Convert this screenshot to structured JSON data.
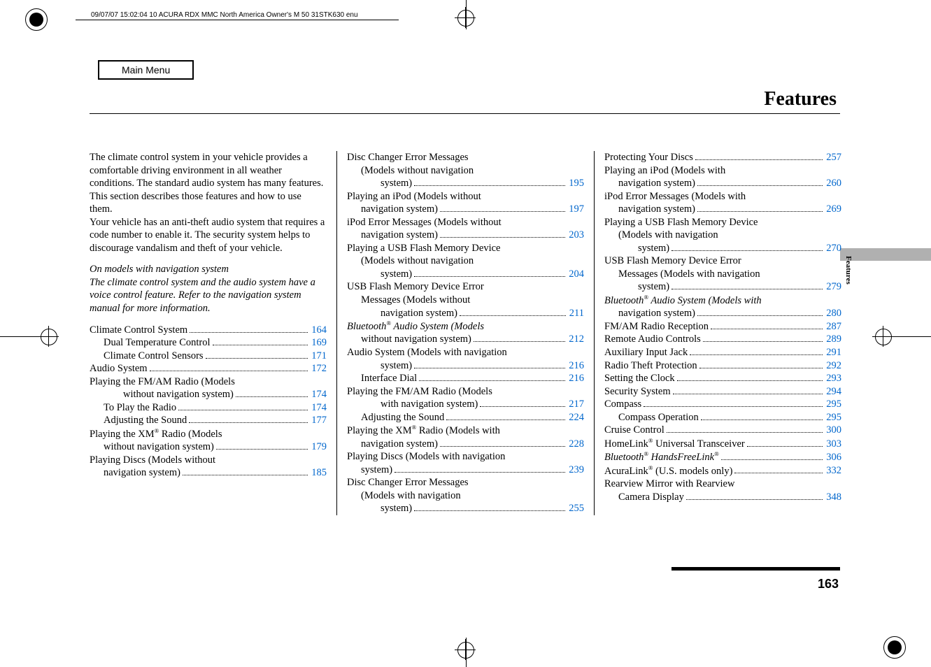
{
  "header": {
    "timestamp": "09/07/07 15:02:04    10 ACURA RDX MMC North America Owner's M 50 31STK630 enu"
  },
  "main_menu_label": "Main Menu",
  "title": "Features",
  "side_tab": "Features",
  "page_number": "163",
  "intro": "The climate control system in your vehicle provides a comfortable driving environment in all weather conditions. The standard audio system has many features. This section describes those features and how to use them.\nYour vehicle has an anti-theft audio system that requires a code number to enable it. The security system helps to discourage vandalism and theft of your vehicle.",
  "note_heading": "On models with navigation system",
  "note_body": "The climate control system and the audio system have a voice control feature. Refer to the navigation system manual for more information.",
  "col1": [
    {
      "label": "Climate Control System",
      "page": "164",
      "indent": 0
    },
    {
      "label": "Dual Temperature Control",
      "page": "169",
      "indent": 1
    },
    {
      "label": "Climate Control Sensors",
      "page": "171",
      "indent": 1
    },
    {
      "label": "Audio System",
      "page": "172",
      "indent": 0
    },
    {
      "label": "Playing the FM/AM Radio (Models",
      "cont": "without navigation system)",
      "page": "174",
      "indent": 0,
      "contIndent": 2
    },
    {
      "label": "To Play the Radio",
      "page": "174",
      "indent": 1
    },
    {
      "label": "Adjusting the Sound",
      "page": "177",
      "indent": 1
    },
    {
      "label": "Playing the XM® Radio (Models",
      "cont": "without navigation system)",
      "page": "179",
      "indent": 0,
      "contIndent": 1
    },
    {
      "label": "Playing Discs (Models without",
      "cont": "navigation system)",
      "page": "185",
      "indent": 0,
      "contIndent": 1
    }
  ],
  "col2": [
    {
      "label": "Disc Changer Error Messages",
      "cont": "(Models without navigation",
      "cont2": "system)",
      "page": "195",
      "indent": 0
    },
    {
      "label": "Playing an iPod (Models without",
      "cont": "navigation system)",
      "page": "197",
      "indent": 0
    },
    {
      "label": "iPod Error Messages (Models without",
      "cont": "navigation system)",
      "page": "203",
      "indent": 0
    },
    {
      "label": "Playing a USB Flash Memory Device",
      "cont": "(Models without navigation",
      "cont2": "system)",
      "page": "204",
      "indent": 0
    },
    {
      "label": "USB Flash Memory Device Error",
      "cont": "Messages (Models without",
      "cont2": "navigation system)",
      "page": "211",
      "indent": 0
    },
    {
      "label": "Bluetooth® Audio System (Models",
      "italic": true,
      "cont": "without navigation system)",
      "page": "212",
      "indent": 0
    },
    {
      "label": "Audio System (Models with navigation",
      "cont": "system)",
      "page": "216",
      "indent": 0,
      "contIndent": 2
    },
    {
      "label": "Interface Dial",
      "page": "216",
      "indent": 1
    },
    {
      "label": "Playing the FM/AM Radio (Models",
      "cont": "with navigation system)",
      "page": "217",
      "indent": 0,
      "contIndent": 2
    },
    {
      "label": "Adjusting the Sound",
      "page": "224",
      "indent": 1
    },
    {
      "label": "Playing the XM® Radio (Models with",
      "cont": "navigation system)",
      "page": "228",
      "indent": 0
    },
    {
      "label": "Playing Discs (Models with navigation",
      "cont": "system)",
      "page": "239",
      "indent": 0
    },
    {
      "label": "Disc Changer Error Messages",
      "cont": "(Models with navigation",
      "cont2": "system)",
      "page": "255",
      "indent": 0
    }
  ],
  "col3": [
    {
      "label": "Protecting Your Discs",
      "page": "257",
      "indent": 0
    },
    {
      "label": "Playing an iPod (Models with",
      "cont": "navigation system)",
      "page": "260",
      "indent": 0
    },
    {
      "label": "iPod Error Messages (Models with",
      "cont": "navigation system)",
      "page": "269",
      "indent": 0
    },
    {
      "label": "Playing a USB Flash Memory Device",
      "cont": "(Models with navigation",
      "cont2": "system)",
      "page": "270",
      "indent": 0
    },
    {
      "label": "USB Flash Memory Device Error",
      "cont": "Messages (Models with navigation",
      "cont2": "system)",
      "page": "279",
      "indent": 0
    },
    {
      "label": "Bluetooth® Audio System (Models with",
      "italic": true,
      "cont": "navigation system)",
      "page": "280",
      "indent": 0
    },
    {
      "label": "FM/AM Radio Reception",
      "page": "287",
      "indent": 0
    },
    {
      "label": "Remote Audio Controls",
      "page": "289",
      "indent": 0
    },
    {
      "label": "Auxiliary Input Jack",
      "page": "291",
      "indent": 0
    },
    {
      "label": "Radio Theft Protection",
      "page": "292",
      "indent": 0
    },
    {
      "label": "Setting the Clock",
      "page": "293",
      "indent": 0
    },
    {
      "label": "Security System",
      "page": "294",
      "indent": 0
    },
    {
      "label": "Compass",
      "page": "295",
      "indent": 0
    },
    {
      "label": "Compass Operation",
      "page": "295",
      "indent": 1
    },
    {
      "label": "Cruise Control",
      "page": "300",
      "indent": 0
    },
    {
      "label": "HomeLink® Universal Transceiver",
      "page": "303",
      "indent": 0
    },
    {
      "label": "Bluetooth® HandsFreeLink®",
      "italic": true,
      "page": "306",
      "indent": 0
    },
    {
      "label": "AcuraLink® (U.S. models only)",
      "page": "332",
      "indent": 0
    },
    {
      "label": "Rearview Mirror with Rearview",
      "cont": "Camera Display",
      "page": "348",
      "indent": 0
    }
  ],
  "accent_color": "#0066cc"
}
